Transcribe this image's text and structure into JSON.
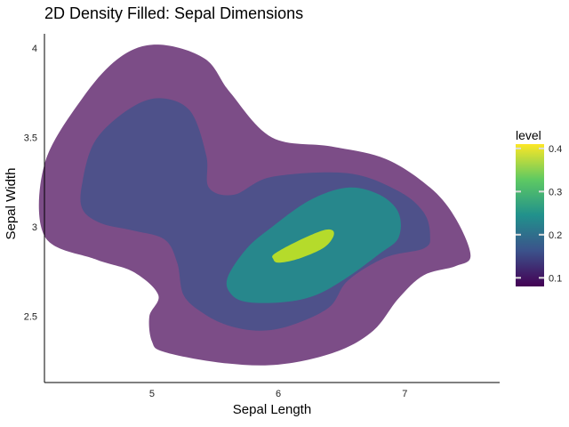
{
  "chart_data": {
    "type": "filled-density-contour",
    "title": "2D Density Filled: Sepal Dimensions",
    "xlabel": "Sepal Length",
    "ylabel": "Sepal Width",
    "xlim": [
      4.15,
      7.75
    ],
    "ylim": [
      2.13,
      4.08
    ],
    "xticks": [
      5,
      6,
      7
    ],
    "yticks": [
      2.5,
      3,
      3.5,
      4
    ],
    "xtick_labels": [
      "5",
      "6",
      "7"
    ],
    "ytick_labels": [
      "2.5",
      "3",
      "3.5",
      "4"
    ],
    "grid": false,
    "legend": {
      "title": "level",
      "position": "right",
      "range": [
        0.08,
        0.41
      ],
      "ticks": [
        0.1,
        0.2,
        0.3,
        0.4
      ],
      "tick_labels": [
        "0.1",
        "0.2",
        "0.3",
        "0.4"
      ],
      "gradient": [
        "#440154",
        "#3b528b",
        "#21918c",
        "#5ec962",
        "#fde725"
      ]
    },
    "levels": [
      {
        "level": 0.1,
        "color": "#440154",
        "opacity": 0.7,
        "polygon": [
          [
            4.15,
            3.35
          ],
          [
            4.45,
            3.72
          ],
          [
            4.75,
            3.95
          ],
          [
            5.05,
            4.02
          ],
          [
            5.42,
            3.94
          ],
          [
            5.62,
            3.75
          ],
          [
            5.95,
            3.5
          ],
          [
            6.42,
            3.45
          ],
          [
            6.85,
            3.38
          ],
          [
            7.2,
            3.22
          ],
          [
            7.4,
            3.05
          ],
          [
            7.52,
            2.84
          ],
          [
            7.4,
            2.78
          ],
          [
            7.15,
            2.73
          ],
          [
            6.95,
            2.6
          ],
          [
            6.75,
            2.42
          ],
          [
            6.45,
            2.3
          ],
          [
            6.0,
            2.23
          ],
          [
            5.55,
            2.24
          ],
          [
            5.1,
            2.3
          ],
          [
            5.0,
            2.36
          ],
          [
            4.98,
            2.5
          ],
          [
            5.05,
            2.62
          ],
          [
            4.85,
            2.75
          ],
          [
            4.55,
            2.82
          ],
          [
            4.15,
            2.95
          ]
        ]
      },
      {
        "level": 0.2,
        "color": "#3b528b",
        "opacity": 0.7,
        "polygon": [
          [
            4.45,
            3.25
          ],
          [
            4.55,
            3.48
          ],
          [
            4.8,
            3.65
          ],
          [
            5.05,
            3.72
          ],
          [
            5.3,
            3.65
          ],
          [
            5.43,
            3.4
          ],
          [
            5.45,
            3.22
          ],
          [
            5.65,
            3.18
          ],
          [
            5.95,
            3.28
          ],
          [
            6.55,
            3.3
          ],
          [
            6.95,
            3.2
          ],
          [
            7.15,
            3.08
          ],
          [
            7.2,
            2.95
          ],
          [
            7.15,
            2.88
          ],
          [
            6.85,
            2.83
          ],
          [
            6.55,
            2.7
          ],
          [
            6.4,
            2.55
          ],
          [
            6.1,
            2.45
          ],
          [
            5.85,
            2.42
          ],
          [
            5.6,
            2.45
          ],
          [
            5.4,
            2.52
          ],
          [
            5.25,
            2.62
          ],
          [
            5.2,
            2.8
          ],
          [
            5.1,
            2.93
          ],
          [
            4.85,
            2.98
          ],
          [
            4.6,
            3.02
          ],
          [
            4.45,
            3.1
          ]
        ]
      },
      {
        "level": 0.3,
        "color": "#21918c",
        "opacity": 0.85,
        "polygon": [
          [
            5.6,
            2.72
          ],
          [
            5.75,
            2.88
          ],
          [
            5.95,
            3.0
          ],
          [
            6.25,
            3.15
          ],
          [
            6.55,
            3.22
          ],
          [
            6.8,
            3.18
          ],
          [
            6.95,
            3.08
          ],
          [
            6.95,
            2.94
          ],
          [
            6.8,
            2.85
          ],
          [
            6.55,
            2.72
          ],
          [
            6.3,
            2.62
          ],
          [
            6.05,
            2.58
          ],
          [
            5.75,
            2.58
          ],
          [
            5.62,
            2.63
          ]
        ]
      },
      {
        "level": 0.4,
        "color": "#bddf26",
        "opacity": 0.95,
        "polygon": [
          [
            5.97,
            2.85
          ],
          [
            6.15,
            2.92
          ],
          [
            6.35,
            2.98
          ],
          [
            6.43,
            2.98
          ],
          [
            6.43,
            2.94
          ],
          [
            6.35,
            2.88
          ],
          [
            6.15,
            2.82
          ],
          [
            6.0,
            2.8
          ],
          [
            5.96,
            2.82
          ]
        ]
      }
    ]
  }
}
